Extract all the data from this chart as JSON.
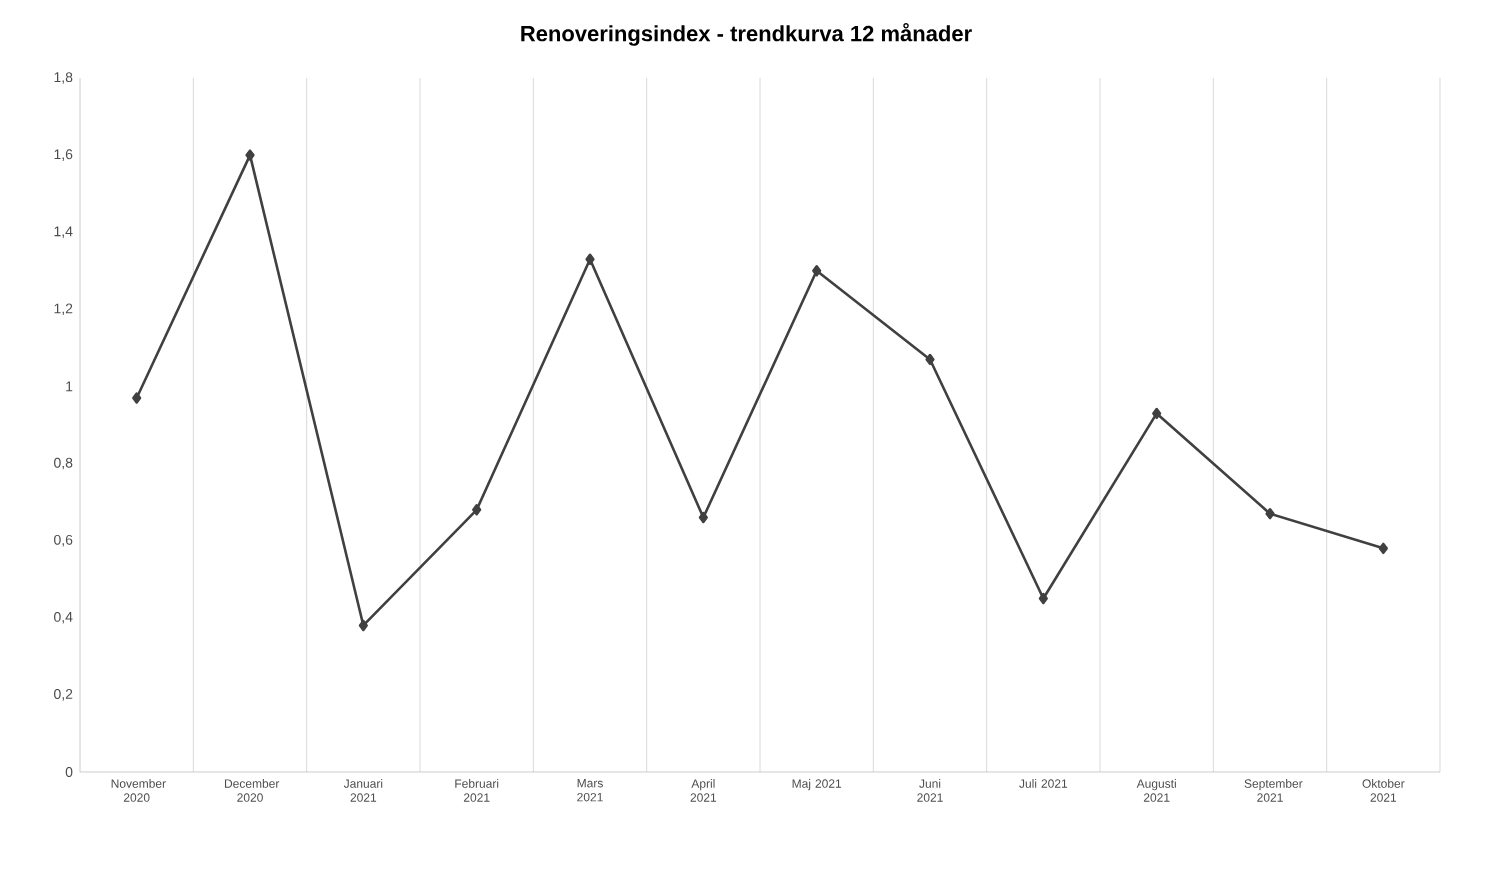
{
  "chart_data": {
    "type": "line",
    "title": "Renoveringsindex - trendkurva 12 månader",
    "categories": [
      "November 2020",
      "December 2020",
      "Januari 2021",
      "Februari 2021",
      "Mars 2021",
      "April 2021",
      "Maj 2021",
      "Juni 2021",
      "Juli 2021",
      "Augusti 2021",
      "September 2021",
      "Oktober 2021"
    ],
    "values": [
      0.97,
      1.6,
      0.38,
      0.68,
      1.33,
      0.66,
      1.3,
      1.07,
      0.45,
      0.93,
      0.67,
      0.58
    ],
    "color": "#404040",
    "marker": "diamond",
    "line_style": "solid",
    "grid": "x",
    "ylim": [
      0,
      1.8
    ],
    "yticks": [
      {
        "value": 0,
        "label": "0"
      },
      {
        "value": 0.2,
        "label": "0,2"
      },
      {
        "value": 0.4,
        "label": "0,4"
      },
      {
        "value": 0.6,
        "label": "0,6"
      },
      {
        "value": 0.8,
        "label": "0,8"
      },
      {
        "value": 1,
        "label": "1"
      },
      {
        "value": 1.2,
        "label": "1,2"
      },
      {
        "value": 1.4,
        "label": "1,4"
      },
      {
        "value": 1.6,
        "label": "1,6"
      },
      {
        "value": 1.8,
        "label": "1,8"
      }
    ]
  }
}
